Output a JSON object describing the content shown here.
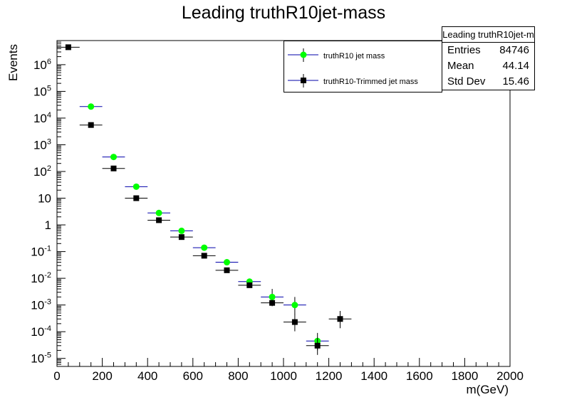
{
  "chart_data": {
    "type": "scatter",
    "title": "Leading truthR10jet-mass",
    "xlabel": "m(GeV)",
    "ylabel": "Events",
    "xlim": [
      0,
      2000
    ],
    "ylim": [
      5e-06,
      8000000.0
    ],
    "yscale": "log",
    "x_ticks": [
      "0",
      "200",
      "400",
      "600",
      "800",
      "1000",
      "1200",
      "1400",
      "1600",
      "1800",
      "2000"
    ],
    "bin_width": 100,
    "series": [
      {
        "name": "truthR10 jet mass",
        "color": "#00ff00",
        "marker": "circle",
        "x": [
          150,
          250,
          350,
          450,
          550,
          650,
          750,
          850,
          950,
          1050,
          1150
        ],
        "y": [
          27000,
          350,
          27,
          2.8,
          0.6,
          0.14,
          0.04,
          0.0075,
          0.002,
          0.001,
          4.5e-05
        ]
      },
      {
        "name": "truthR10-Trimmed jet mass",
        "color": "#000000",
        "marker": "square",
        "x": [
          50,
          150,
          250,
          350,
          450,
          550,
          650,
          750,
          850,
          950,
          1050,
          1150,
          1250
        ],
        "y": [
          4500000,
          5500,
          130,
          10,
          1.5,
          0.35,
          0.07,
          0.02,
          0.0055,
          0.0012,
          0.00023,
          3e-05,
          0.0003
        ]
      }
    ],
    "stats": {
      "name": "Leading truthR10jet-m",
      "entries_label": "Entries",
      "entries": "84746",
      "mean_label": "Mean",
      "mean": "44.14",
      "stddev_label": "Std Dev",
      "stddev": "15.46"
    },
    "legend_position": "top-right",
    "grid": false
  }
}
